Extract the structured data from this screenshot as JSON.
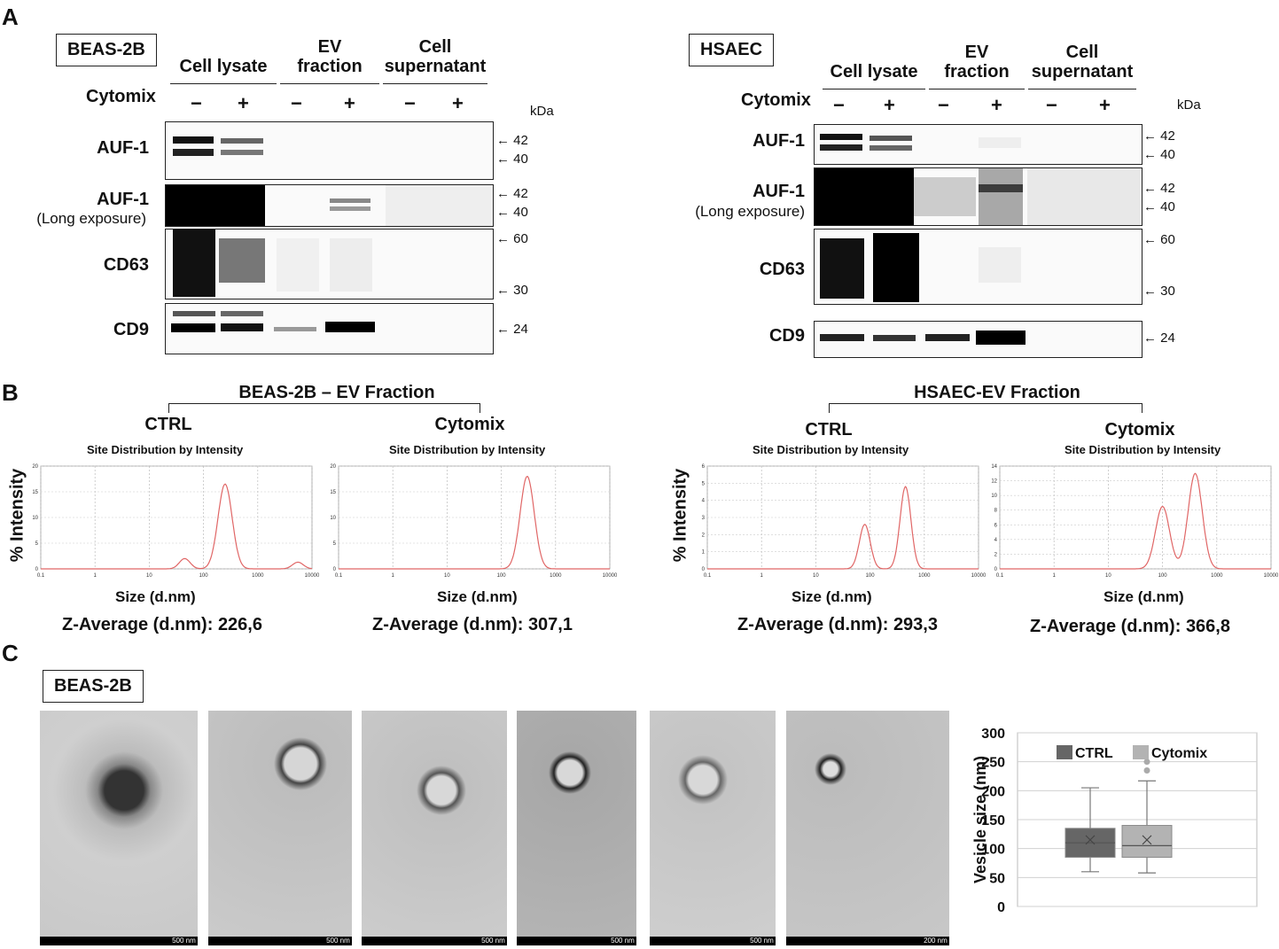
{
  "panel_a": {
    "letter": "A",
    "left": {
      "cell_line": "BEAS-2B",
      "columns": [
        "Cell lysate",
        "EV\nfraction",
        "Cell\nsupernatant"
      ],
      "cytomix_label": "Cytomix",
      "signs": [
        "−",
        "+",
        "−",
        "+",
        "−",
        "+"
      ],
      "kda_label": "kDa",
      "rows": [
        {
          "label": "AUF-1",
          "sub": "",
          "markers": [
            "42",
            "40"
          ]
        },
        {
          "label": "AUF-1",
          "sub": "(Long exposure)",
          "markers": [
            "42",
            "40"
          ]
        },
        {
          "label": "CD63",
          "sub": "",
          "markers": [
            "60",
            "30"
          ]
        },
        {
          "label": "CD9",
          "sub": "",
          "markers": [
            "24"
          ]
        }
      ]
    },
    "right": {
      "cell_line": "HSAEC",
      "columns": [
        "Cell lysate",
        "EV\nfraction",
        "Cell\nsupernatant"
      ],
      "cytomix_label": "Cytomix",
      "signs": [
        "−",
        "+",
        "−",
        "+",
        "−",
        "+"
      ],
      "kda_label": "kDa",
      "rows": [
        {
          "label": "AUF-1",
          "sub": "",
          "markers": [
            "42",
            "40"
          ]
        },
        {
          "label": "AUF-1",
          "sub": "(Long exposure)",
          "markers": [
            "42",
            "40"
          ]
        },
        {
          "label": "CD63",
          "sub": "",
          "markers": [
            "60",
            "30"
          ]
        },
        {
          "label": "CD9",
          "sub": "",
          "markers": [
            "24"
          ]
        }
      ]
    }
  },
  "panel_b": {
    "letter": "B",
    "left_group_title": "BEAS-2B – EV Fraction",
    "right_group_title": "HSAEC-EV Fraction",
    "ylabel": "% Intensity",
    "xlabel": "Size (d.nm)",
    "subtitle": "Site Distribution  by Intensity",
    "plots": [
      {
        "title": "CTRL",
        "zavg": "Z-Average (d.nm): 226,6"
      },
      {
        "title": "Cytomix",
        "zavg": "Z-Average (d.nm): 307,1"
      },
      {
        "title": "CTRL",
        "zavg": "Z-Average (d.nm): 293,3"
      },
      {
        "title": "Cytomix",
        "zavg": "Z-Average (d.nm): 366,8"
      }
    ]
  },
  "chart_data": [
    {
      "type": "line",
      "x": [
        0.1,
        40,
        50,
        250,
        5000,
        10000
      ],
      "x_peaks": [
        {
          "center": 45,
          "height": 2
        },
        {
          "center": 250,
          "height": 16.5
        },
        {
          "center": 5500,
          "height": 1.3
        }
      ],
      "ylim": [
        0,
        20
      ],
      "yticks": [
        0,
        5,
        10,
        15,
        20
      ],
      "xticks": [
        "0.1",
        "1",
        "10",
        "100",
        "1000",
        "10000"
      ],
      "xscale": "log"
    },
    {
      "type": "line",
      "x_peaks": [
        {
          "center": 300,
          "height": 18
        }
      ],
      "ylim": [
        0,
        20
      ],
      "yticks": [
        0,
        5,
        10,
        15,
        20
      ],
      "xticks": [
        "0.1",
        "1",
        "10",
        "100",
        "1000",
        "10000"
      ],
      "xscale": "log"
    },
    {
      "type": "line",
      "x_peaks": [
        {
          "center": 80,
          "height": 2.6
        },
        {
          "center": 450,
          "height": 4.8
        }
      ],
      "ylim": [
        0,
        6
      ],
      "yticks": [
        0,
        1,
        2,
        3,
        4,
        5,
        6
      ],
      "xticks": [
        "0.1",
        "1",
        "10",
        "100",
        "1000",
        "10000"
      ],
      "xscale": "log"
    },
    {
      "type": "line",
      "x_peaks": [
        {
          "center": 100,
          "height": 8.5
        },
        {
          "center": 400,
          "height": 13
        }
      ],
      "ylim": [
        0,
        14
      ],
      "yticks": [
        0,
        2,
        4,
        6,
        8,
        10,
        12,
        14
      ],
      "xticks": [
        "0.1",
        "1",
        "10",
        "100",
        "1000",
        "10000"
      ],
      "xscale": "log"
    },
    {
      "type": "box",
      "ylabel": "Vesicle size (nm)",
      "ylim": [
        0,
        300
      ],
      "yticks": [
        "0",
        "50",
        "100",
        "150",
        "200",
        "250",
        "300"
      ],
      "series": [
        {
          "name": "CTRL",
          "min": 60,
          "q1": 85,
          "median": 110,
          "q3": 135,
          "max": 205,
          "mean": 115,
          "color": "#666666"
        },
        {
          "name": "Cytomix",
          "min": 58,
          "q1": 85,
          "median": 105,
          "q3": 140,
          "max": 217,
          "mean": 115,
          "outliers": [
            235,
            250
          ],
          "color": "#b3b3b3"
        }
      ]
    }
  ],
  "panel_c": {
    "letter": "C",
    "cell_line": "BEAS-2B",
    "scale_labels": [
      "500 nm",
      "500 nm",
      "500 nm",
      "500 nm",
      "500 nm",
      "200 nm"
    ]
  }
}
